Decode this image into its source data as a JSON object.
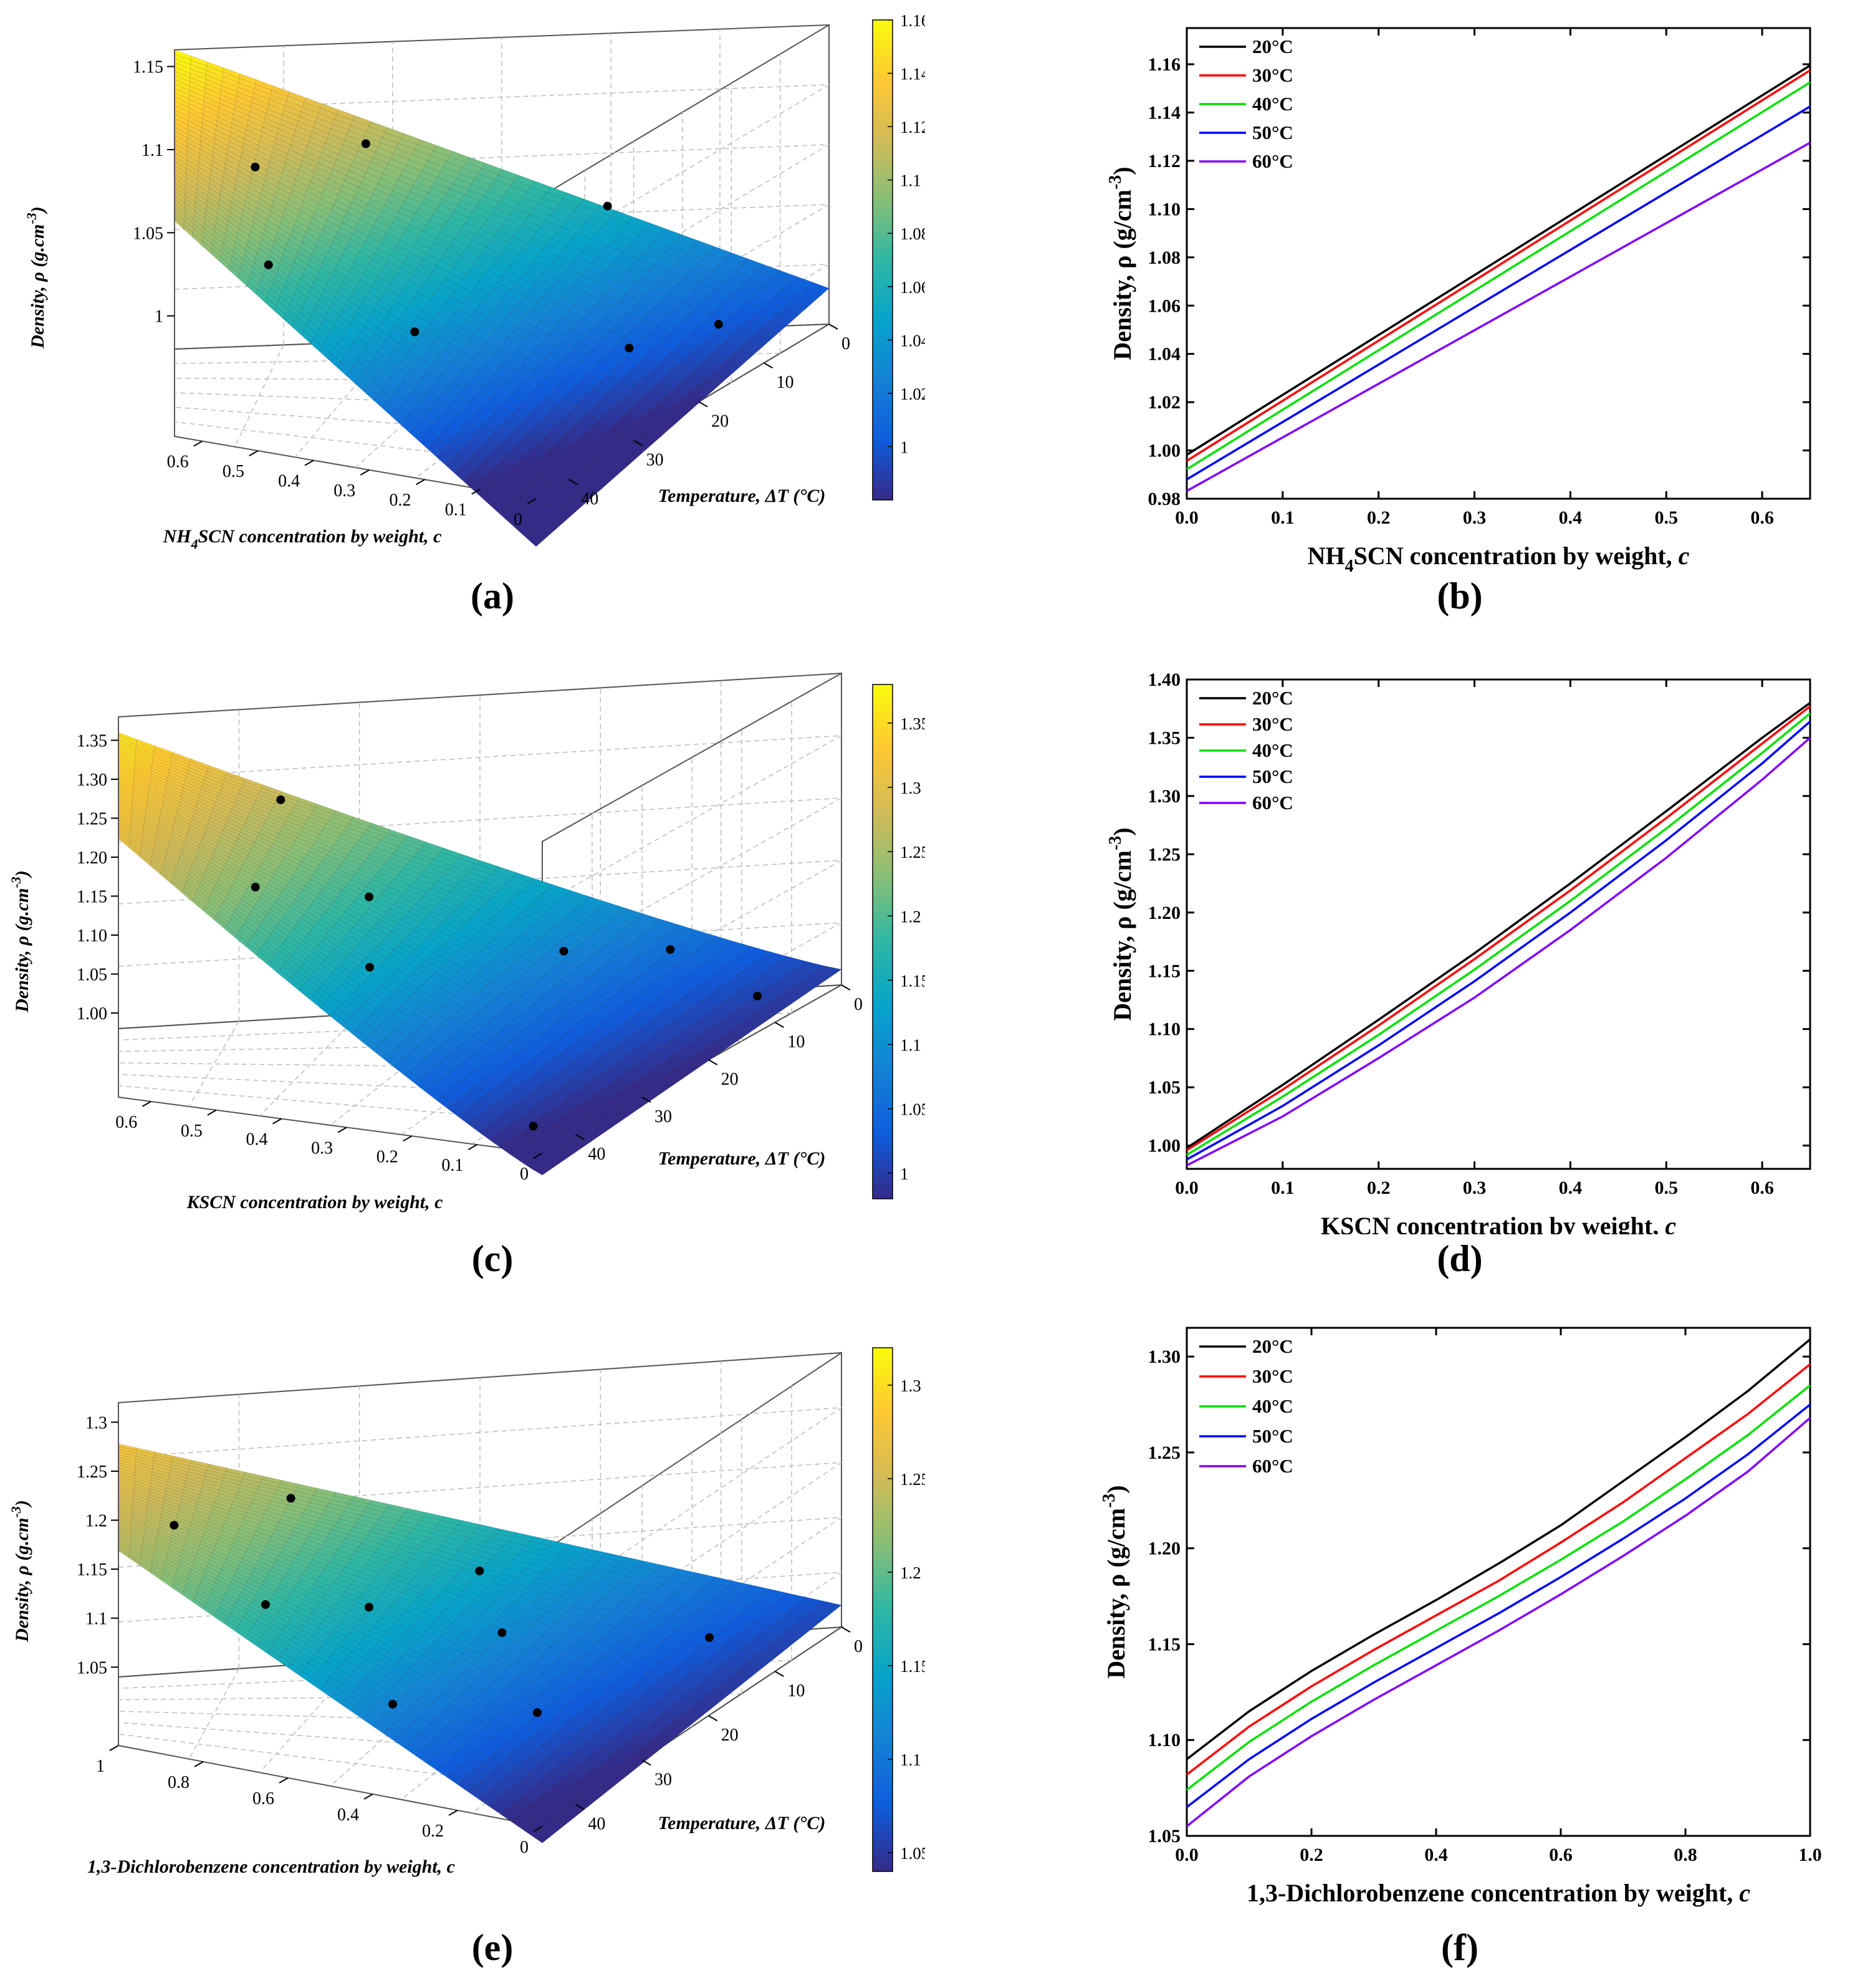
{
  "colors": {
    "series": [
      "#000000",
      "#ff0000",
      "#00e000",
      "#0000ff",
      "#8000ff"
    ],
    "parula": [
      "#352a87",
      "#0f5cdd",
      "#1481d6",
      "#06a4ca",
      "#2eb7a4",
      "#87bf77",
      "#d1bb59",
      "#fec832",
      "#f9fb0e"
    ]
  },
  "panels": {
    "a": {
      "label": "(a)"
    },
    "b": {
      "label": "(b)"
    },
    "c": {
      "label": "(c)"
    },
    "d": {
      "label": "(d)"
    },
    "e": {
      "label": "(e)"
    },
    "f": {
      "label": "(f)"
    }
  },
  "chart_data": [
    {
      "id": "a",
      "type": "surface",
      "zlabel": "Density, ρ (g.cm",
      "zlabel_sup": "-3",
      "zlabel_end": ")",
      "xlabel_pre": "NH",
      "xlabel_sub": "4",
      "xlabel_post": "SCN concentration by weight, c",
      "ylabel": "Temperature, ΔT (°C)",
      "c_ticks": [
        "0.6",
        "0.5",
        "0.4",
        "0.3",
        "0.2",
        "0.1",
        "0"
      ],
      "t_ticks": [
        "40",
        "30",
        "20",
        "10",
        "0"
      ],
      "z_ticks": [
        "1.15",
        "1.1",
        "1.05",
        "1"
      ],
      "colorbar_ticks": [
        "1.16",
        "1.14",
        "1.12",
        "1.1",
        "1.08",
        "1.06",
        "1.04",
        "1.02",
        "1"
      ],
      "c_range": [
        0,
        0.65
      ],
      "t_range": [
        0,
        45
      ],
      "z_range": [
        0.98,
        1.16
      ],
      "scatter_points": [
        [
          0.45,
          5
        ],
        [
          0.22,
          0
        ],
        [
          0.5,
          38
        ],
        [
          0.3,
          32
        ],
        [
          0.1,
          18
        ],
        [
          0.05,
          10
        ],
        [
          0.55,
          20
        ]
      ]
    },
    {
      "id": "b",
      "type": "line",
      "ylabel": "Density, ρ (g/cm",
      "ylabel_sup": "-3",
      "ylabel_end": ")",
      "xlabel_pre": "NH",
      "xlabel_sub": "4",
      "xlabel_post": "SCN concentration by weight, ",
      "xlabel_var": "c",
      "x_ticks": [
        "0.0",
        "0.1",
        "0.2",
        "0.3",
        "0.4",
        "0.5",
        "0.6"
      ],
      "y_ticks": [
        "0.98",
        "1.00",
        "1.02",
        "1.04",
        "1.06",
        "1.08",
        "1.10",
        "1.12",
        "1.14",
        "1.16"
      ],
      "xlim": [
        0,
        0.65
      ],
      "ylim": [
        0.98,
        1.175
      ],
      "x": [
        0,
        0.65
      ],
      "series": [
        {
          "name": "20°C",
          "values": [
            0.9982,
            1.1595
          ]
        },
        {
          "name": "30°C",
          "values": [
            0.9957,
            1.1575
          ]
        },
        {
          "name": "40°C",
          "values": [
            0.9922,
            1.1525
          ]
        },
        {
          "name": "50°C",
          "values": [
            0.988,
            1.1425
          ]
        },
        {
          "name": "60°C",
          "values": [
            0.9832,
            1.1275
          ]
        }
      ]
    },
    {
      "id": "c",
      "type": "surface",
      "zlabel": "Density, ρ (g.cm",
      "zlabel_sup": "-3",
      "zlabel_end": ")",
      "xlabel_pre": "KSCN concentration by weight, c",
      "xlabel_sub": "",
      "xlabel_post": "",
      "ylabel": "Temperature, ΔT (°C)",
      "c_ticks": [
        "0.6",
        "0.5",
        "0.4",
        "0.3",
        "0.2",
        "0.1",
        "0"
      ],
      "t_ticks": [
        "40",
        "30",
        "20",
        "10",
        "0"
      ],
      "z_ticks": [
        "1.35",
        "1.30",
        "1.25",
        "1.20",
        "1.15",
        "1.10",
        "1.05",
        "1.00"
      ],
      "colorbar_ticks": [
        "1.35",
        "1.3",
        "1.25",
        "1.2",
        "1.15",
        "1.1",
        "1.05",
        "1"
      ],
      "c_range": [
        0,
        0.65
      ],
      "t_range": [
        0,
        45
      ],
      "z_range": [
        0.98,
        1.38
      ],
      "scatter_points": [
        [
          0.5,
          3
        ],
        [
          0.38,
          18
        ],
        [
          0.48,
          30
        ],
        [
          0.33,
          32
        ],
        [
          0.13,
          5
        ],
        [
          0.06,
          40
        ],
        [
          0.03,
          8
        ],
        [
          0.2,
          12
        ]
      ]
    },
    {
      "id": "d",
      "type": "line",
      "ylabel": "Density, ρ (g/cm",
      "ylabel_sup": "-3",
      "ylabel_end": ")",
      "xlabel_pre": "KSCN concentration by weight, ",
      "xlabel_sub": "",
      "xlabel_post": "",
      "xlabel_var": "c",
      "x_ticks": [
        "0.0",
        "0.1",
        "0.2",
        "0.3",
        "0.4",
        "0.5",
        "0.6"
      ],
      "y_ticks": [
        "1.00",
        "1.05",
        "1.10",
        "1.15",
        "1.20",
        "1.25",
        "1.30",
        "1.35",
        "1.40"
      ],
      "xlim": [
        0,
        0.65
      ],
      "ylim": [
        0.98,
        1.4
      ],
      "x": [
        0,
        0.1,
        0.2,
        0.3,
        0.4,
        0.5,
        0.6,
        0.65
      ],
      "series": [
        {
          "name": "20°C",
          "values": [
            0.998,
            1.052,
            1.108,
            1.165,
            1.225,
            1.287,
            1.35,
            1.38
          ]
        },
        {
          "name": "30°C",
          "values": [
            0.996,
            1.048,
            1.103,
            1.16,
            1.219,
            1.281,
            1.345,
            1.377
          ]
        },
        {
          "name": "40°C",
          "values": [
            0.992,
            1.042,
            1.095,
            1.151,
            1.21,
            1.272,
            1.337,
            1.371
          ]
        },
        {
          "name": "50°C",
          "values": [
            0.988,
            1.034,
            1.086,
            1.141,
            1.2,
            1.262,
            1.328,
            1.364
          ]
        },
        {
          "name": "60°C",
          "values": [
            0.983,
            1.025,
            1.075,
            1.127,
            1.185,
            1.247,
            1.314,
            1.35
          ]
        }
      ]
    },
    {
      "id": "e",
      "type": "surface",
      "zlabel": "Density, ρ (g.cm",
      "zlabel_sup": "-3",
      "zlabel_end": ")",
      "xlabel_pre": "1,3-Dichlorobenzene concentration by weight, c",
      "xlabel_sub": "",
      "xlabel_post": "",
      "ylabel": "Temperature, ΔT (°C)",
      "c_ticks": [
        "1",
        "0.8",
        "0.6",
        "0.4",
        "0.2",
        "0"
      ],
      "t_ticks": [
        "40",
        "30",
        "20",
        "10",
        "0"
      ],
      "z_ticks": [
        "1.3",
        "1.25",
        "1.2",
        "1.15",
        "1.1",
        "1.05"
      ],
      "colorbar_ticks": [
        "1.3",
        "1.25",
        "1.2",
        "1.15",
        "1.1",
        "1.05"
      ],
      "c_range": [
        0,
        1
      ],
      "t_range": [
        0,
        45
      ],
      "z_range": [
        1.04,
        1.32
      ],
      "scatter_points": [
        [
          0.9,
          25
        ],
        [
          0.7,
          35
        ],
        [
          0.75,
          5
        ],
        [
          0.55,
          25
        ],
        [
          0.45,
          10
        ],
        [
          0.35,
          20
        ],
        [
          0.2,
          30
        ],
        [
          0.1,
          10
        ],
        [
          0.4,
          40
        ]
      ]
    },
    {
      "id": "f",
      "type": "line",
      "ylabel": "Density, ρ (g/cm",
      "ylabel_sup": "-3",
      "ylabel_end": ")",
      "xlabel_pre": "1,3-Dichlorobenzene concentration by weight, ",
      "xlabel_sub": "",
      "xlabel_post": "",
      "xlabel_var": "c",
      "x_ticks": [
        "0.0",
        "0.2",
        "0.4",
        "0.6",
        "0.8",
        "1.0"
      ],
      "y_ticks": [
        "1.05",
        "1.10",
        "1.15",
        "1.20",
        "1.25",
        "1.30"
      ],
      "xlim": [
        0,
        1.0
      ],
      "ylim": [
        1.05,
        1.315
      ],
      "x": [
        0,
        0.1,
        0.2,
        0.3,
        0.4,
        0.5,
        0.6,
        0.7,
        0.8,
        0.9,
        1.0
      ],
      "series": [
        {
          "name": "20°C",
          "values": [
            1.09,
            1.115,
            1.136,
            1.155,
            1.173,
            1.192,
            1.212,
            1.235,
            1.258,
            1.282,
            1.309
          ]
        },
        {
          "name": "30°C",
          "values": [
            1.082,
            1.107,
            1.128,
            1.147,
            1.165,
            1.183,
            1.203,
            1.224,
            1.247,
            1.27,
            1.296
          ]
        },
        {
          "name": "40°C",
          "values": [
            1.074,
            1.099,
            1.12,
            1.139,
            1.157,
            1.175,
            1.194,
            1.214,
            1.236,
            1.259,
            1.285
          ]
        },
        {
          "name": "50°C",
          "values": [
            1.065,
            1.09,
            1.111,
            1.13,
            1.148,
            1.166,
            1.185,
            1.205,
            1.226,
            1.249,
            1.275
          ]
        },
        {
          "name": "60°C",
          "values": [
            1.055,
            1.081,
            1.102,
            1.121,
            1.139,
            1.157,
            1.176,
            1.196,
            1.217,
            1.24,
            1.268
          ]
        }
      ]
    }
  ]
}
